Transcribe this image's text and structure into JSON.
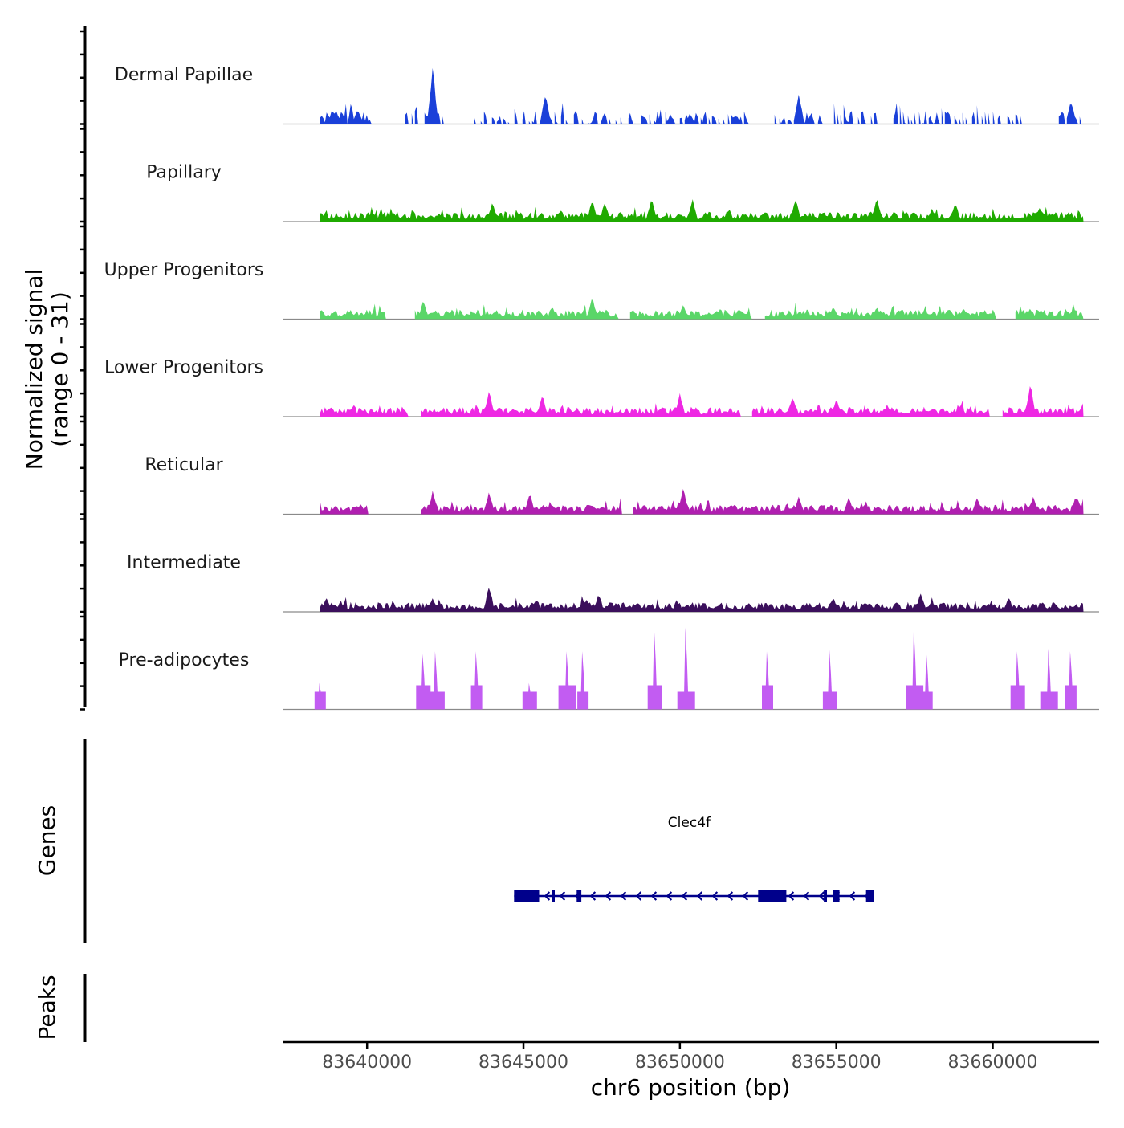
{
  "chart_data": {
    "type": "area",
    "y_axis_title_line1": "Normalized signal",
    "y_axis_title_line2": "(range 0 - 31)",
    "y_range": [
      0,
      31
    ],
    "x_axis_title": "chr6 position (bp)",
    "x_range": [
      83637300,
      83663400
    ],
    "x_ticks": [
      83640000,
      83645000,
      83650000,
      83655000,
      83660000
    ],
    "x_tick_labels": [
      "83640000",
      "83645000",
      "83650000",
      "83655000",
      "83660000"
    ],
    "genes_panel_title": "Genes",
    "peaks_panel_title": "Peaks",
    "series": [
      {
        "name": "Dermal Papillae",
        "color": "#1a40d9",
        "style": "spiky",
        "start": 83638500,
        "end": 83662900,
        "peaks": [
          [
            83639000,
            8
          ],
          [
            83639200,
            6
          ],
          [
            83639700,
            8
          ],
          [
            83642100,
            31
          ],
          [
            83645700,
            17
          ],
          [
            83653800,
            17
          ],
          [
            83662500,
            13
          ]
        ],
        "gaps": [
          [
            83640100,
            83641200
          ],
          [
            83642500,
            83643400
          ],
          [
            83648100,
            83648300
          ],
          [
            83652200,
            83653000
          ],
          [
            83656300,
            83656800
          ],
          [
            83661000,
            83662100
          ]
        ]
      },
      {
        "name": "Papillary",
        "color": "#1faa00",
        "style": "dense",
        "start": 83638500,
        "end": 83662900,
        "peaks": [
          [
            83644000,
            11
          ],
          [
            83647200,
            13
          ],
          [
            83647600,
            11
          ],
          [
            83649100,
            13
          ],
          [
            83650400,
            13
          ],
          [
            83653700,
            13
          ],
          [
            83656300,
            13
          ],
          [
            83658800,
            11
          ],
          [
            83661500,
            8
          ]
        ],
        "gaps": []
      },
      {
        "name": "Upper Progenitors",
        "color": "#5ad668",
        "style": "dense",
        "start": 83638500,
        "end": 83662900,
        "peaks": [
          [
            83638500,
            5
          ],
          [
            83641800,
            10
          ],
          [
            83647200,
            12
          ],
          [
            83650100,
            8
          ],
          [
            83654900,
            7
          ],
          [
            83656300,
            7
          ],
          [
            83661200,
            6
          ]
        ],
        "gaps": [
          [
            83640600,
            83641500
          ],
          [
            83648000,
            83648400
          ],
          [
            83652300,
            83652700
          ],
          [
            83660100,
            83660700
          ]
        ]
      },
      {
        "name": "Lower Progenitors",
        "color": "#ee28e3",
        "style": "dense",
        "start": 83638500,
        "end": 83662900,
        "peaks": [
          [
            83643900,
            14
          ],
          [
            83645600,
            12
          ],
          [
            83650000,
            13
          ],
          [
            83653600,
            12
          ],
          [
            83655000,
            10
          ],
          [
            83661200,
            18
          ],
          [
            83662900,
            8
          ]
        ],
        "gaps": [
          [
            83641300,
            83641700
          ],
          [
            83651900,
            83652300
          ],
          [
            83659900,
            83660300
          ]
        ]
      },
      {
        "name": "Reticular",
        "color": "#b01fb0",
        "style": "dense",
        "start": 83638500,
        "end": 83662900,
        "peaks": [
          [
            83639000,
            5
          ],
          [
            83642100,
            13
          ],
          [
            83643900,
            13
          ],
          [
            83645200,
            12
          ],
          [
            83650100,
            15
          ],
          [
            83653800,
            10
          ],
          [
            83655400,
            10
          ],
          [
            83659500,
            10
          ],
          [
            83661300,
            10
          ],
          [
            83662700,
            10
          ]
        ],
        "gaps": [
          [
            83640000,
            83641700
          ],
          [
            83648100,
            83648500
          ]
        ]
      },
      {
        "name": "Intermediate",
        "color": "#3b0f5c",
        "style": "dense",
        "start": 83638500,
        "end": 83662900,
        "peaks": [
          [
            83638700,
            8
          ],
          [
            83642100,
            8
          ],
          [
            83643900,
            15
          ],
          [
            83645400,
            7
          ],
          [
            83647400,
            10
          ],
          [
            83654900,
            8
          ],
          [
            83657700,
            11
          ],
          [
            83660500,
            8
          ]
        ],
        "gaps": []
      },
      {
        "name": "Pre-adipocytes",
        "color": "#c25cf2",
        "style": "spikes",
        "start": 83638500,
        "end": 83662900,
        "peaks": [
          [
            83638500,
            10
          ],
          [
            83641800,
            21
          ],
          [
            83642200,
            22
          ],
          [
            83643500,
            22
          ],
          [
            83645200,
            10
          ],
          [
            83646400,
            22
          ],
          [
            83646900,
            22
          ],
          [
            83649200,
            31
          ],
          [
            83650200,
            31
          ],
          [
            83652800,
            22
          ],
          [
            83654800,
            23
          ],
          [
            83657500,
            31
          ],
          [
            83657900,
            22
          ],
          [
            83660800,
            22
          ],
          [
            83661800,
            23
          ],
          [
            83662500,
            22
          ]
        ],
        "gaps": []
      }
    ],
    "genes": [
      {
        "name": "Clec4f",
        "strand": "-",
        "color": "#00008b",
        "start": 83644700,
        "end": 83656200,
        "exons": [
          [
            83644700,
            83645500
          ],
          [
            83645900,
            83646000
          ],
          [
            83646700,
            83646850
          ],
          [
            83652500,
            83653400
          ],
          [
            83654600,
            83654700
          ],
          [
            83654900,
            83655100
          ],
          [
            83655950,
            83656200
          ]
        ]
      }
    ],
    "peaks_regions": []
  }
}
